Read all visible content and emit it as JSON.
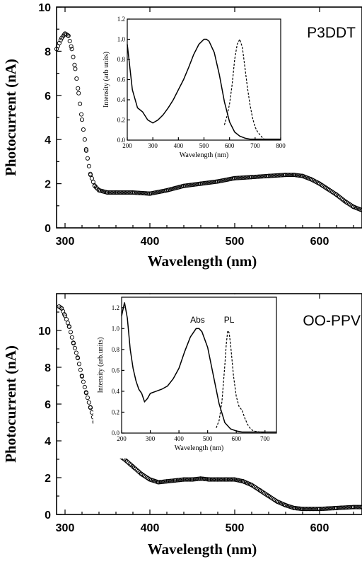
{
  "chart_data": [
    {
      "type": "scatter",
      "panel_label": "P3DDT",
      "xlabel": "Wavelength (nm)",
      "ylabel": "Photocurrent (nA)",
      "xlim": [
        290,
        650
      ],
      "ylim": [
        0,
        10
      ],
      "x_ticks": [
        300,
        400,
        500,
        600
      ],
      "y_ticks": [
        0,
        2,
        4,
        6,
        8,
        10
      ],
      "series": [
        {
          "x": [
            290,
            296,
            300,
            304,
            308,
            312,
            316,
            320,
            325,
            330,
            335,
            340,
            350,
            360,
            380,
            400,
            420,
            440,
            460,
            480,
            500,
            520,
            540,
            560,
            570,
            580,
            590,
            600,
            610,
            620,
            630,
            640,
            650
          ],
          "y": [
            8.1,
            8.6,
            8.8,
            8.7,
            8.1,
            7.2,
            6.1,
            4.9,
            3.5,
            2.4,
            1.9,
            1.7,
            1.6,
            1.6,
            1.6,
            1.55,
            1.7,
            1.9,
            2.0,
            2.1,
            2.25,
            2.3,
            2.35,
            2.4,
            2.4,
            2.35,
            2.2,
            2.0,
            1.75,
            1.5,
            1.2,
            0.95,
            0.8
          ]
        }
      ],
      "inset": {
        "xlabel": "Wavelength (nm)",
        "ylabel": "Intensity (arb units)",
        "xlim": [
          200,
          800
        ],
        "ylim": [
          0,
          1.2
        ],
        "x_ticks": [
          200,
          300,
          400,
          500,
          600,
          700,
          800
        ],
        "y_ticks": [
          0.0,
          0.2,
          0.4,
          0.6,
          0.8,
          1.0,
          1.2
        ],
        "series": [
          {
            "x": [
              200,
              220,
              240,
              260,
              280,
              300,
              320,
              340,
              360,
              380,
              400,
              420,
              440,
              460,
              480,
              500,
              510,
              520,
              540,
              560,
              580,
              600,
              620,
              640,
              660,
              680,
              700,
              720,
              740,
              760,
              780,
              800
            ],
            "y": [
              0.95,
              0.5,
              0.32,
              0.28,
              0.2,
              0.17,
              0.2,
              0.25,
              0.32,
              0.4,
              0.5,
              0.6,
              0.72,
              0.85,
              0.95,
              1.0,
              1.0,
              0.98,
              0.87,
              0.65,
              0.38,
              0.18,
              0.08,
              0.04,
              0.02,
              0.01,
              0.01,
              0.01,
              0.01,
              0.01,
              0.01,
              0.01
            ]
          },
          {
            "x": [
              580,
              590,
              600,
              610,
              620,
              630,
              640,
              650,
              660,
              670,
              680,
              690,
              700,
              710,
              720,
              730,
              740
            ],
            "y": [
              0.15,
              0.24,
              0.36,
              0.55,
              0.8,
              0.95,
              1.0,
              0.92,
              0.72,
              0.52,
              0.35,
              0.22,
              0.13,
              0.08,
              0.05,
              0.02,
              0.0
            ]
          }
        ]
      }
    },
    {
      "type": "scatter",
      "panel_label": "OO-PPV",
      "xlabel": "Wavelength (nm)",
      "ylabel": "Photocurrent (nA)",
      "xlim": [
        290,
        650
      ],
      "ylim": [
        0,
        12
      ],
      "x_ticks": [
        300,
        400,
        500,
        600
      ],
      "y_ticks": [
        0,
        2,
        4,
        6,
        8,
        10
      ],
      "series": [
        {
          "x": [
            293,
            296,
            300,
            305,
            310,
            315,
            320,
            325,
            330,
            335,
            340,
            345,
            350,
            360,
            370,
            380,
            390,
            400,
            410,
            420,
            430,
            440,
            450,
            460,
            470,
            480,
            490,
            500,
            510,
            520,
            530,
            540,
            550,
            560,
            570,
            580,
            600,
            620,
            640,
            650
          ],
          "y": [
            11.3,
            11.2,
            10.8,
            10.2,
            9.3,
            8.5,
            7.5,
            6.6,
            5.8,
            5.0,
            4.4,
            3.9,
            3.5,
            3.3,
            3.0,
            2.6,
            2.2,
            1.9,
            1.75,
            1.8,
            1.85,
            1.9,
            1.9,
            1.95,
            1.9,
            1.9,
            1.9,
            1.9,
            1.8,
            1.6,
            1.3,
            1.0,
            0.7,
            0.5,
            0.35,
            0.3,
            0.3,
            0.35,
            0.4,
            0.4
          ]
        }
      ],
      "inset": {
        "xlabel": "Wavelength (nm)",
        "ylabel": "Intensity (arb.units)",
        "xlim": [
          200,
          740
        ],
        "ylim": [
          0,
          1.3
        ],
        "x_ticks": [
          200,
          300,
          400,
          500,
          600,
          700
        ],
        "y_ticks": [
          0.0,
          0.2,
          0.4,
          0.6,
          0.8,
          1.0,
          1.2
        ],
        "annotations": [
          "Abs",
          "PL"
        ],
        "series": [
          {
            "x": [
              200,
              210,
              220,
              230,
              240,
              250,
              260,
              270,
              280,
              290,
              300,
              320,
              340,
              360,
              380,
              400,
              420,
              440,
              460,
              470,
              480,
              500,
              520,
              540,
              560,
              580,
              600,
              620,
              640,
              660,
              680,
              700,
              720,
              740
            ],
            "y": [
              1.12,
              1.25,
              1.1,
              0.8,
              0.62,
              0.5,
              0.42,
              0.38,
              0.3,
              0.33,
              0.38,
              0.4,
              0.42,
              0.45,
              0.52,
              0.62,
              0.78,
              0.92,
              1.0,
              1.0,
              0.97,
              0.82,
              0.55,
              0.28,
              0.1,
              0.04,
              0.02,
              0.01,
              0.01,
              0.01,
              0.01,
              0.01,
              0.01,
              0.01
            ]
          },
          {
            "x": [
              530,
              540,
              550,
              560,
              565,
              570,
              575,
              580,
              590,
              600,
              610,
              620,
              630,
              640,
              650,
              660,
              680,
              700
            ],
            "y": [
              0.05,
              0.12,
              0.3,
              0.65,
              0.85,
              0.98,
              0.96,
              0.85,
              0.55,
              0.35,
              0.25,
              0.22,
              0.14,
              0.08,
              0.04,
              0.02,
              0.01,
              0.0
            ]
          }
        ]
      }
    }
  ]
}
